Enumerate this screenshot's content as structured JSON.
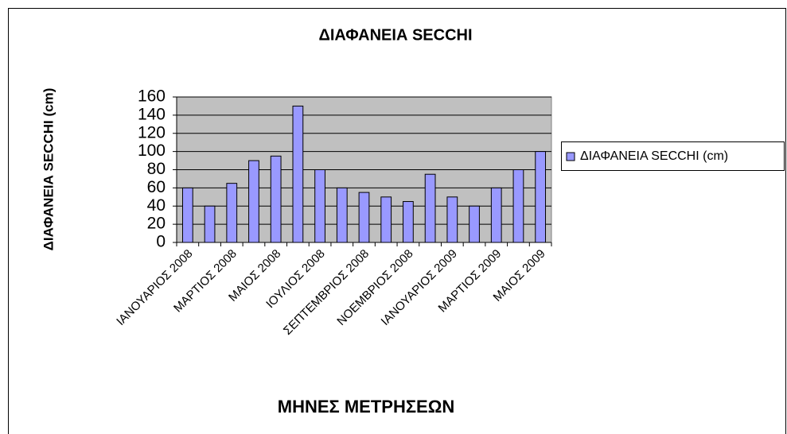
{
  "chart_data": {
    "type": "bar",
    "title": "ΔΙΑΦΑΝΕΙΑ SECCHI",
    "x_label": "ΜΗΝΕΣ ΜΕΤΡΗΣΕΩΝ",
    "y_label": "ΔΙΑΦΑΝΕΙΑ SECCHI (cm)",
    "categories": [
      "ΙΑΝΟΥΑΡΙΟΣ 2008",
      null,
      "ΜΑΡΤΙΟΣ 2008",
      null,
      "ΜΑΙΟΣ 2008",
      null,
      "ΙΟΥΛΙΟΣ 2008",
      null,
      "ΣΕΠΤΕΜΒΡΙΟΣ 2008",
      null,
      "ΝΟΕΜΒΡΙΟΣ 2008",
      null,
      "ΙΑΝΟΥΑΡΙΟΣ 2009",
      null,
      "ΜΑΡΤΙΟΣ 2009",
      null,
      "ΜΑΙΟΣ 2009"
    ],
    "series": [
      {
        "name": "ΔΙΑΦΑΝΕΙΑ SECCHI (cm)",
        "color": "#9999ff",
        "values": [
          60,
          40,
          65,
          90,
          95,
          150,
          80,
          60,
          55,
          50,
          45,
          75,
          50,
          40,
          60,
          80,
          100
        ]
      }
    ],
    "ylim": [
      0,
      160
    ],
    "yticks": [
      0,
      20,
      40,
      60,
      80,
      100,
      120,
      140,
      160
    ],
    "grid": true,
    "legend": "right"
  }
}
